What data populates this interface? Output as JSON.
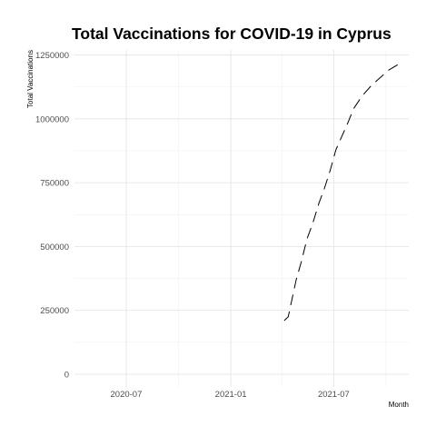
{
  "chart_data": {
    "type": "line",
    "title": "Total Vaccinations for COVID-19 in Cyprus",
    "xlabel": "Month",
    "ylabel": "Total Vaccinations",
    "x_ticks": [
      {
        "date": "2020-07-01",
        "label": "2020-07"
      },
      {
        "date": "2021-01-01",
        "label": "2021-01"
      },
      {
        "date": "2021-07-01",
        "label": "2021-07"
      }
    ],
    "y_ticks": [
      {
        "value": 0,
        "label": "0"
      },
      {
        "value": 250000,
        "label": "250000"
      },
      {
        "value": 500000,
        "label": "500000"
      },
      {
        "value": 750000,
        "label": "750000"
      },
      {
        "value": 1000000,
        "label": "1000000"
      },
      {
        "value": 1250000,
        "label": "1250000"
      }
    ],
    "xlim": [
      "2020-04-01",
      "2021-11-10"
    ],
    "ylim": [
      -50000,
      1270000
    ],
    "grid": true,
    "series": [
      {
        "line_style": "dashed",
        "color": "#000000",
        "x": [
          "2021-04-05",
          "2021-04-12",
          "2021-04-26",
          "2021-05-05",
          "2021-05-15",
          "2021-05-25",
          "2021-06-05",
          "2021-06-15",
          "2021-06-25",
          "2021-07-05",
          "2021-07-15",
          "2021-07-25",
          "2021-08-05",
          "2021-08-20",
          "2021-09-05",
          "2021-09-20",
          "2021-10-05",
          "2021-10-20",
          "2021-10-27"
        ],
        "y": [
          210000,
          225000,
          370000,
          440000,
          530000,
          590000,
          670000,
          730000,
          800000,
          880000,
          930000,
          980000,
          1040000,
          1090000,
          1130000,
          1160000,
          1190000,
          1210000,
          1220000
        ]
      }
    ]
  }
}
